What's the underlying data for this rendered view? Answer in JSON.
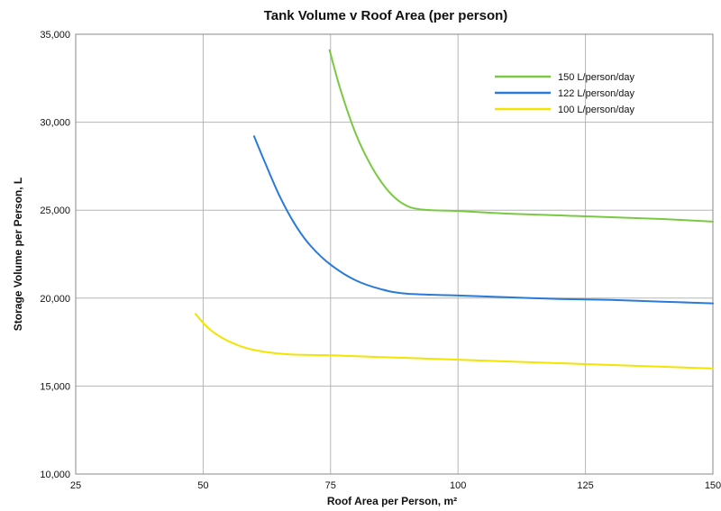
{
  "chart_data": {
    "type": "line",
    "title": "Tank Volume v Roof Area (per person)",
    "xlabel": "Roof Area per Person, m²",
    "ylabel": "Storage Volume per Person, L",
    "xlim": [
      25,
      150
    ],
    "ylim": [
      10000,
      35000
    ],
    "xticks": [
      25,
      50,
      75,
      100,
      125,
      150
    ],
    "xtick_labels": [
      "25",
      "50",
      "75",
      "100",
      "125",
      "150"
    ],
    "yticks": [
      10000,
      15000,
      20000,
      25000,
      30000,
      35000
    ],
    "ytick_labels": [
      "10,000",
      "15,000",
      "20,000",
      "25,000",
      "30,000",
      "35,000"
    ],
    "grid": true,
    "legend_position": "top-right",
    "series": [
      {
        "name": "150 L/person/day",
        "color": "#7ac943",
        "points": [
          [
            74.8,
            34100
          ],
          [
            77,
            31800
          ],
          [
            80,
            29300
          ],
          [
            83,
            27500
          ],
          [
            86,
            26200
          ],
          [
            89,
            25400
          ],
          [
            92.5,
            25050
          ],
          [
            100,
            24950
          ],
          [
            110,
            24800
          ],
          [
            120,
            24700
          ],
          [
            130,
            24600
          ],
          [
            140,
            24500
          ],
          [
            150,
            24350
          ]
        ]
      },
      {
        "name": "122 L/person/day",
        "color": "#2a7ad9",
        "points": [
          [
            60,
            29200
          ],
          [
            62,
            27800
          ],
          [
            65,
            25800
          ],
          [
            68,
            24200
          ],
          [
            71,
            23000
          ],
          [
            75,
            21900
          ],
          [
            80,
            21000
          ],
          [
            85,
            20500
          ],
          [
            90,
            20250
          ],
          [
            100,
            20150
          ],
          [
            110,
            20050
          ],
          [
            120,
            19950
          ],
          [
            130,
            19900
          ],
          [
            140,
            19800
          ],
          [
            150,
            19700
          ]
        ]
      },
      {
        "name": "100 L/person/day",
        "color": "#f2e400",
        "points": [
          [
            48.5,
            19100
          ],
          [
            51,
            18300
          ],
          [
            54,
            17700
          ],
          [
            58,
            17200
          ],
          [
            62,
            16950
          ],
          [
            67,
            16800
          ],
          [
            75,
            16750
          ],
          [
            85,
            16650
          ],
          [
            100,
            16500
          ],
          [
            110,
            16400
          ],
          [
            125,
            16250
          ],
          [
            140,
            16100
          ],
          [
            150,
            16000
          ]
        ]
      }
    ]
  }
}
